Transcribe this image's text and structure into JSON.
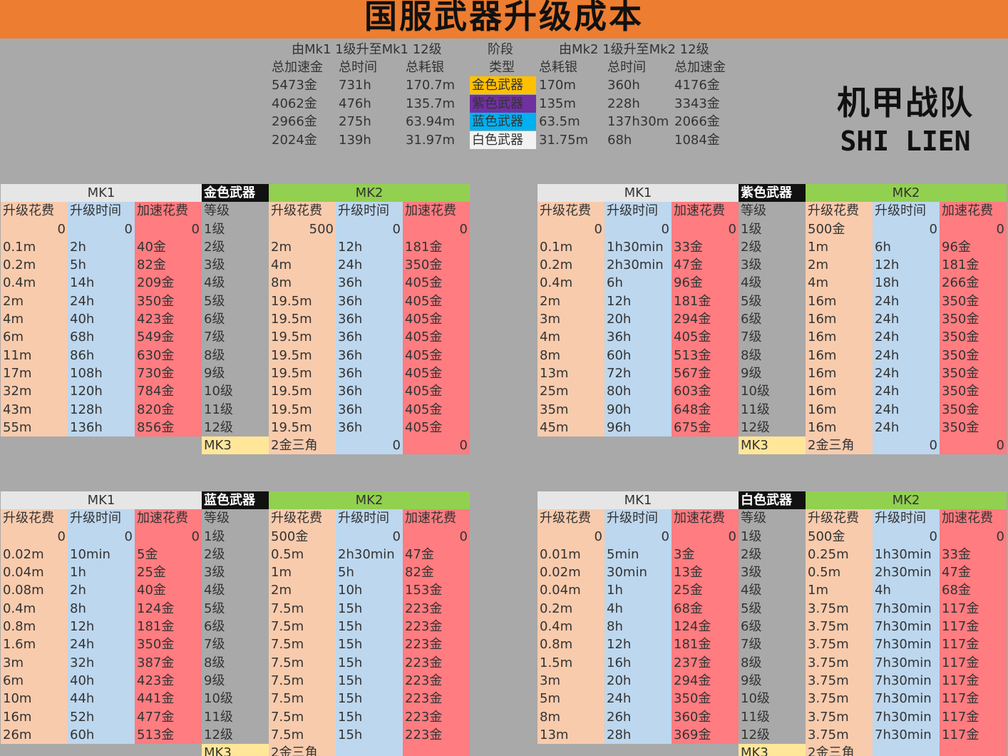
{
  "title": "国服武器升级成本",
  "summary": {
    "left_heading": "由Mk1 1级升至Mk1 12级",
    "mid_heading": "阶段",
    "right_heading": "由Mk2 1级升至Mk2 12级",
    "left_cols": [
      "总加速金",
      "总时间",
      "总耗银"
    ],
    "mid_col": "类型",
    "right_cols": [
      "总耗银",
      "总时间",
      "总加速金"
    ],
    "rows": [
      {
        "a": "5473金",
        "b": "731h",
        "c": "170.7m",
        "type": "金色武器",
        "d": "170m",
        "e": "360h",
        "f": "4176金",
        "color": "#ffc000",
        "text": "#333"
      },
      {
        "a": "4062金",
        "b": "476h",
        "c": "135.7m",
        "type": "紫色武器",
        "d": "135m",
        "e": "228h",
        "f": "3343金",
        "color": "#7030a0",
        "text": "#333"
      },
      {
        "a": "2966金",
        "b": "275h",
        "c": "63.94m",
        "type": "蓝色武器",
        "d": "63.5m",
        "e": "137h30m",
        "f": "2066金",
        "color": "#00b0f0",
        "text": "#333"
      },
      {
        "a": "2024金",
        "b": "139h",
        "c": "31.97m",
        "type": "白色武器",
        "d": "31.75m",
        "e": "68h",
        "f": "1084金",
        "color": "#f2f2f2",
        "text": "#333"
      }
    ]
  },
  "logo": {
    "line1": "机甲战队",
    "line2": "SHI LIEN"
  },
  "panels": [
    {
      "name": "金色武器",
      "mk1": "MK1",
      "mk2": "MK2",
      "headers": [
        "升级花费",
        "升级时间",
        "加速花费",
        "等级",
        "升级花费",
        "升级时间",
        "加速花费"
      ],
      "rows": [
        [
          "0",
          "0",
          "0",
          "1级",
          "500",
          "0",
          "0"
        ],
        [
          "0.1m",
          "2h",
          "40金",
          "2级",
          "2m",
          "12h",
          "181金"
        ],
        [
          "0.2m",
          "5h",
          "82金",
          "3级",
          "4m",
          "24h",
          "350金"
        ],
        [
          "0.4m",
          "14h",
          "209金",
          "4级",
          "8m",
          "36h",
          "405金"
        ],
        [
          "2m",
          "24h",
          "350金",
          "5级",
          "19.5m",
          "36h",
          "405金"
        ],
        [
          "4m",
          "40h",
          "423金",
          "6级",
          "19.5m",
          "36h",
          "405金"
        ],
        [
          "6m",
          "68h",
          "549金",
          "7级",
          "19.5m",
          "36h",
          "405金"
        ],
        [
          "11m",
          "86h",
          "630金",
          "8级",
          "19.5m",
          "36h",
          "405金"
        ],
        [
          "17m",
          "108h",
          "730金",
          "9级",
          "19.5m",
          "36h",
          "405金"
        ],
        [
          "32m",
          "120h",
          "784金",
          "10级",
          "19.5m",
          "36h",
          "405金"
        ],
        [
          "43m",
          "128h",
          "820金",
          "11级",
          "19.5m",
          "36h",
          "405金"
        ],
        [
          "55m",
          "136h",
          "856金",
          "12级",
          "19.5m",
          "36h",
          "405金"
        ]
      ],
      "mk3": [
        "MK3",
        "2金三角",
        "0",
        "0"
      ]
    },
    {
      "name": "紫色武器",
      "mk1": "MK1",
      "mk2": "MK2",
      "headers": [
        "升级花费",
        "升级时间",
        "加速花费",
        "等级",
        "升级花费",
        "升级时间",
        "加速花费"
      ],
      "rows": [
        [
          "0",
          "0",
          "0",
          "1级",
          "500金",
          "0",
          "0"
        ],
        [
          "0.1m",
          "1h30min",
          "33金",
          "2级",
          "1m",
          "6h",
          "96金"
        ],
        [
          "0.2m",
          "2h30min",
          "47金",
          "3级",
          "2m",
          "12h",
          "181金"
        ],
        [
          "0.4m",
          "6h",
          "96金",
          "4级",
          "4m",
          "18h",
          "266金"
        ],
        [
          "2m",
          "12h",
          "181金",
          "5级",
          "16m",
          "24h",
          "350金"
        ],
        [
          "3m",
          "20h",
          "294金",
          "6级",
          "16m",
          "24h",
          "350金"
        ],
        [
          "4m",
          "36h",
          "405金",
          "7级",
          "16m",
          "24h",
          "350金"
        ],
        [
          "8m",
          "60h",
          "513金",
          "8级",
          "16m",
          "24h",
          "350金"
        ],
        [
          "13m",
          "72h",
          "567金",
          "9级",
          "16m",
          "24h",
          "350金"
        ],
        [
          "25m",
          "80h",
          "603金",
          "10级",
          "16m",
          "24h",
          "350金"
        ],
        [
          "35m",
          "90h",
          "648金",
          "11级",
          "16m",
          "24h",
          "350金"
        ],
        [
          "45m",
          "96h",
          "675金",
          "12级",
          "16m",
          "24h",
          "350金"
        ]
      ],
      "mk3": [
        "MK3",
        "2金三角",
        "0",
        "0"
      ]
    },
    {
      "name": "蓝色武器",
      "mk1": "MK1",
      "mk2": "MK2",
      "headers": [
        "升级花费",
        "升级时间",
        "加速花费",
        "等级",
        "升级花费",
        "升级时间",
        "加速花费"
      ],
      "rows": [
        [
          "0",
          "0",
          "0",
          "1级",
          "500金",
          "0",
          "0"
        ],
        [
          "0.02m",
          "10min",
          "5金",
          "2级",
          "0.5m",
          "2h30min",
          "47金"
        ],
        [
          "0.04m",
          "1h",
          "25金",
          "3级",
          "1m",
          "5h",
          "82金"
        ],
        [
          "0.08m",
          "2h",
          "40金",
          "4级",
          "2m",
          "10h",
          "153金"
        ],
        [
          "0.4m",
          "8h",
          "124金",
          "5级",
          "7.5m",
          "15h",
          "223金"
        ],
        [
          "0.8m",
          "12h",
          "181金",
          "6级",
          "7.5m",
          "15h",
          "223金"
        ],
        [
          "1.6m",
          "24h",
          "350金",
          "7级",
          "7.5m",
          "15h",
          "223金"
        ],
        [
          "3m",
          "32h",
          "387金",
          "8级",
          "7.5m",
          "15h",
          "223金"
        ],
        [
          "6m",
          "40h",
          "423金",
          "9级",
          "7.5m",
          "15h",
          "223金"
        ],
        [
          "10m",
          "44h",
          "441金",
          "10级",
          "7.5m",
          "15h",
          "223金"
        ],
        [
          "16m",
          "52h",
          "477金",
          "11级",
          "7.5m",
          "15h",
          "223金"
        ],
        [
          "26m",
          "60h",
          "513金",
          "12级",
          "7.5m",
          "15h",
          "223金"
        ]
      ],
      "mk3": [
        "MK3",
        "2金三角",
        "",
        ""
      ]
    },
    {
      "name": "白色武器",
      "mk1": "MK1",
      "mk2": "MK2",
      "headers": [
        "升级花费",
        "升级时间",
        "加速花费",
        "等级",
        "升级花费",
        "升级时间",
        "加速花费"
      ],
      "rows": [
        [
          "0",
          "0",
          "0",
          "1级",
          "500金",
          "0",
          "0"
        ],
        [
          "0.01m",
          "5min",
          "3金",
          "2级",
          "0.25m",
          "1h30min",
          "33金"
        ],
        [
          "0.02m",
          "30min",
          "13金",
          "3级",
          "0.5m",
          "2h30min",
          "47金"
        ],
        [
          "0.04m",
          "1h",
          "25金",
          "4级",
          "1m",
          "4h",
          "68金"
        ],
        [
          "0.2m",
          "4h",
          "68金",
          "5级",
          "3.75m",
          "7h30min",
          "117金"
        ],
        [
          "0.4m",
          "8h",
          "124金",
          "6级",
          "3.75m",
          "7h30min",
          "117金"
        ],
        [
          "0.8m",
          "12h",
          "181金",
          "7级",
          "3.75m",
          "7h30min",
          "117金"
        ],
        [
          "1.5m",
          "16h",
          "237金",
          "8级",
          "3.75m",
          "7h30min",
          "117金"
        ],
        [
          "3m",
          "20h",
          "294金",
          "9级",
          "3.75m",
          "7h30min",
          "117金"
        ],
        [
          "5m",
          "24h",
          "350金",
          "10级",
          "3.75m",
          "7h30min",
          "117金"
        ],
        [
          "8m",
          "26h",
          "360金",
          "11级",
          "3.75m",
          "7h30min",
          "117金"
        ],
        [
          "13m",
          "28h",
          "369金",
          "12级",
          "3.75m",
          "7h30min",
          "117金"
        ]
      ],
      "mk3": [
        "MK3",
        "2金三角",
        "",
        ""
      ]
    }
  ]
}
